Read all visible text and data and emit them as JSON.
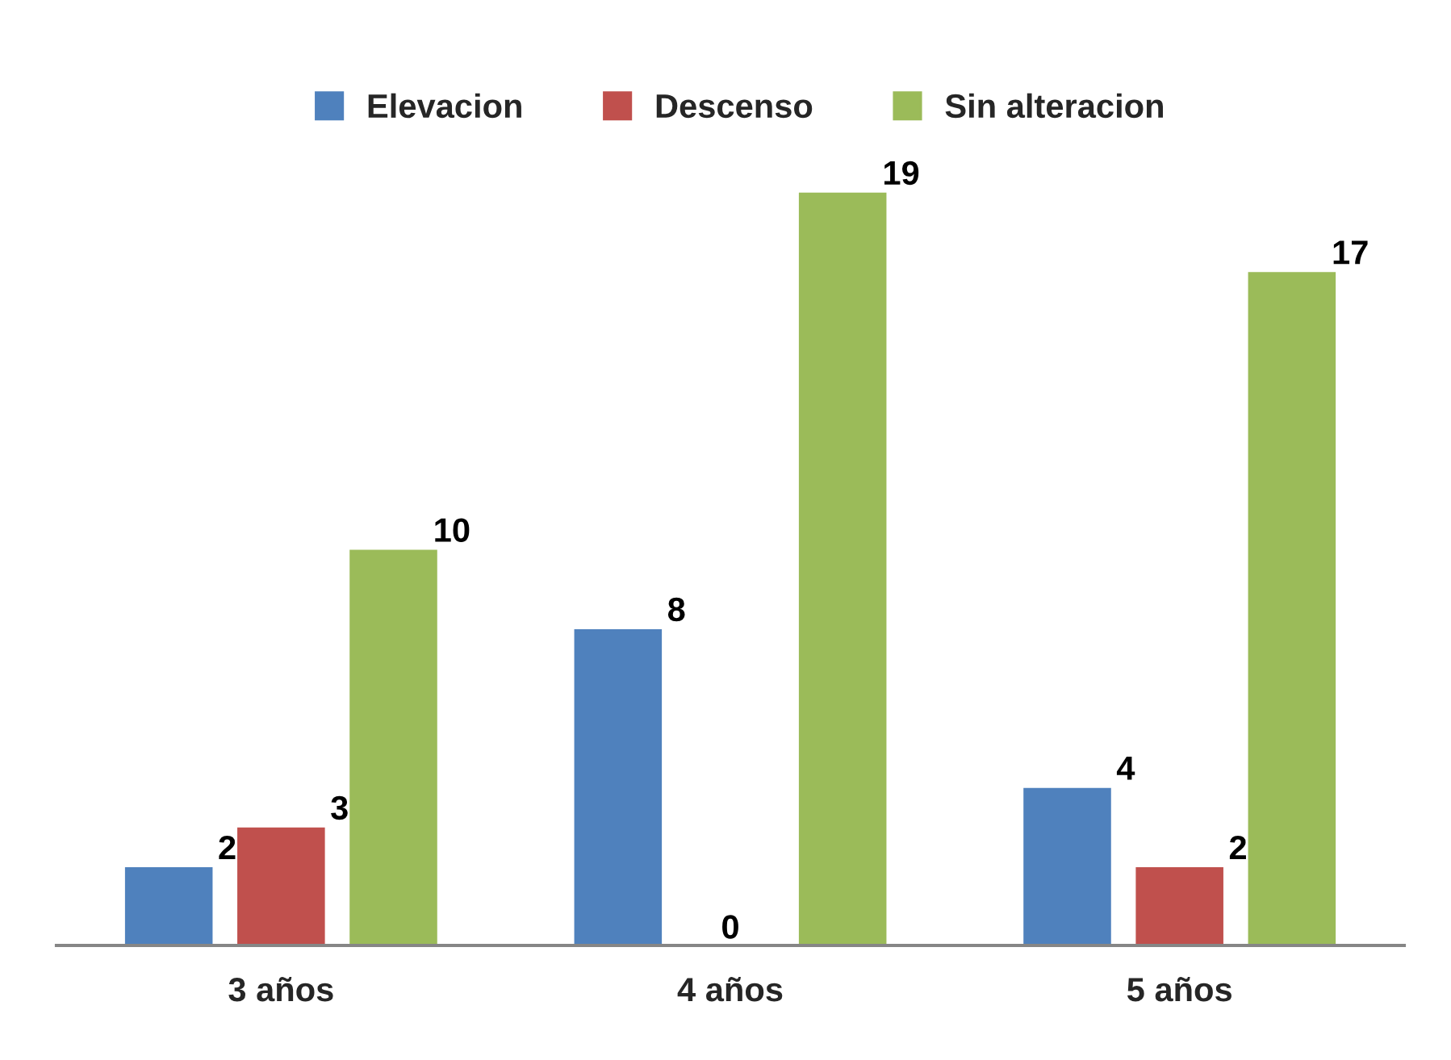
{
  "chart_data": {
    "type": "bar",
    "categories": [
      "3 años",
      "4 años",
      "5 años"
    ],
    "series": [
      {
        "name": "Elevacion",
        "color": "#4f81bd",
        "values": [
          2,
          8,
          4
        ]
      },
      {
        "name": "Descenso",
        "color": "#c0504d",
        "values": [
          3,
          0,
          2
        ]
      },
      {
        "name": "Sin alteracion",
        "color": "#9bbb59",
        "values": [
          10,
          19,
          17
        ]
      }
    ],
    "data_labels": true,
    "legend": "top",
    "grid": false
  }
}
